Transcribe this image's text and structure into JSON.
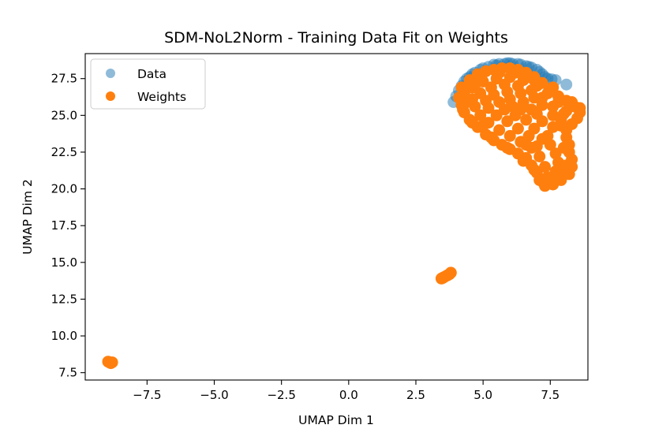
{
  "chart_data": {
    "type": "scatter",
    "title": "SDM-NoL2Norm - Training Data Fit on Weights",
    "xlabel": "UMAP Dim 1",
    "ylabel": "UMAP Dim 2",
    "xlim": [
      -9.8,
      8.9
    ],
    "ylim": [
      7.0,
      29.2
    ],
    "xticks": [
      -7.5,
      -5.0,
      -2.5,
      0.0,
      2.5,
      5.0,
      7.5
    ],
    "xtick_labels": [
      "−7.5",
      "−5.0",
      "−2.5",
      "0.0",
      "2.5",
      "5.0",
      "7.5"
    ],
    "yticks": [
      7.5,
      10.0,
      12.5,
      15.0,
      17.5,
      20.0,
      22.5,
      25.0,
      27.5
    ],
    "ytick_labels": [
      "7.5",
      "10.0",
      "12.5",
      "15.0",
      "17.5",
      "20.0",
      "22.5",
      "25.0",
      "27.5"
    ],
    "grid": false,
    "legend_position": "top-left",
    "series": [
      {
        "name": "Data",
        "color": "#1f77b4",
        "alpha": 0.5,
        "points": [
          [
            3.9,
            25.9
          ],
          [
            4.0,
            26.3
          ],
          [
            4.2,
            27.0
          ],
          [
            4.4,
            27.5
          ],
          [
            4.6,
            27.8
          ],
          [
            4.9,
            28.1
          ],
          [
            5.2,
            28.3
          ],
          [
            5.5,
            28.4
          ],
          [
            5.8,
            28.5
          ],
          [
            6.1,
            28.5
          ],
          [
            6.4,
            28.45
          ],
          [
            6.7,
            28.3
          ],
          [
            7.0,
            28.1
          ],
          [
            7.2,
            27.8
          ],
          [
            7.4,
            27.5
          ],
          [
            7.7,
            27.4
          ],
          [
            8.1,
            27.1
          ],
          [
            4.7,
            27.9
          ],
          [
            5.0,
            28.2
          ],
          [
            5.4,
            28.45
          ],
          [
            5.9,
            28.55
          ],
          [
            6.3,
            28.5
          ],
          [
            6.8,
            28.25
          ],
          [
            7.1,
            27.95
          ],
          [
            4.3,
            27.3
          ],
          [
            4.5,
            27.6
          ],
          [
            5.6,
            28.5
          ],
          [
            6.0,
            28.55
          ],
          [
            6.6,
            28.35
          ],
          [
            7.3,
            27.6
          ],
          [
            4.1,
            26.7
          ],
          [
            7.55,
            27.45
          ]
        ]
      },
      {
        "name": "Weights",
        "color": "#ff7f0e",
        "alpha": 1.0,
        "points": [
          [
            -8.9,
            8.2
          ],
          [
            -8.85,
            8.15
          ],
          [
            -8.95,
            8.25
          ],
          [
            -8.8,
            8.2
          ],
          [
            3.45,
            13.9
          ],
          [
            3.55,
            14.0
          ],
          [
            3.65,
            14.1
          ],
          [
            3.75,
            14.2
          ],
          [
            3.8,
            14.3
          ],
          [
            3.5,
            13.95
          ],
          [
            3.7,
            14.15
          ],
          [
            4.2,
            26.9
          ],
          [
            4.5,
            27.4
          ],
          [
            4.8,
            27.8
          ],
          [
            5.1,
            28.0
          ],
          [
            5.4,
            28.1
          ],
          [
            5.7,
            28.2
          ],
          [
            6.0,
            28.2
          ],
          [
            6.3,
            28.1
          ],
          [
            6.6,
            27.9
          ],
          [
            6.9,
            27.6
          ],
          [
            7.2,
            27.2
          ],
          [
            7.5,
            26.8
          ],
          [
            7.8,
            26.3
          ],
          [
            8.1,
            26.0
          ],
          [
            8.4,
            25.6
          ],
          [
            8.6,
            25.2
          ],
          [
            8.5,
            24.8
          ],
          [
            8.3,
            24.4
          ],
          [
            8.1,
            24.0
          ],
          [
            8.1,
            23.5
          ],
          [
            8.2,
            23.0
          ],
          [
            8.2,
            22.5
          ],
          [
            8.3,
            22.0
          ],
          [
            8.3,
            21.5
          ],
          [
            8.2,
            21.0
          ],
          [
            7.9,
            20.6
          ],
          [
            7.6,
            20.3
          ],
          [
            7.3,
            20.2
          ],
          [
            7.1,
            20.6
          ],
          [
            7.0,
            21.1
          ],
          [
            6.8,
            21.6
          ],
          [
            6.6,
            22.1
          ],
          [
            6.3,
            22.4
          ],
          [
            6.0,
            22.7
          ],
          [
            5.7,
            23.0
          ],
          [
            5.4,
            23.3
          ],
          [
            5.1,
            23.7
          ],
          [
            4.8,
            24.2
          ],
          [
            4.5,
            24.7
          ],
          [
            4.3,
            25.2
          ],
          [
            4.2,
            25.7
          ],
          [
            4.1,
            26.2
          ],
          [
            4.3,
            26.5
          ],
          [
            4.6,
            26.9
          ],
          [
            5.0,
            27.3
          ],
          [
            5.5,
            27.5
          ],
          [
            6.0,
            27.6
          ],
          [
            6.5,
            27.4
          ],
          [
            7.0,
            27.0
          ],
          [
            7.4,
            26.5
          ],
          [
            7.8,
            25.9
          ],
          [
            8.1,
            25.3
          ],
          [
            7.9,
            24.7
          ],
          [
            7.6,
            24.2
          ],
          [
            7.4,
            23.6
          ],
          [
            7.5,
            23.0
          ],
          [
            7.7,
            22.4
          ],
          [
            7.8,
            21.8
          ],
          [
            7.7,
            21.2
          ],
          [
            7.4,
            20.8
          ],
          [
            7.3,
            21.5
          ],
          [
            7.1,
            22.2
          ],
          [
            6.8,
            22.8
          ],
          [
            6.4,
            23.2
          ],
          [
            6.0,
            23.6
          ],
          [
            5.6,
            24.0
          ],
          [
            5.2,
            24.5
          ],
          [
            4.9,
            25.0
          ],
          [
            4.7,
            25.6
          ],
          [
            4.6,
            26.1
          ],
          [
            4.9,
            26.5
          ],
          [
            5.3,
            26.9
          ],
          [
            5.8,
            27.1
          ],
          [
            6.3,
            27.0
          ],
          [
            6.8,
            26.7
          ],
          [
            7.2,
            26.2
          ],
          [
            7.6,
            25.6
          ],
          [
            7.6,
            25.0
          ],
          [
            7.2,
            24.6
          ],
          [
            6.9,
            24.1
          ],
          [
            6.7,
            23.6
          ],
          [
            6.3,
            24.1
          ],
          [
            5.9,
            24.6
          ],
          [
            5.5,
            25.0
          ],
          [
            5.2,
            25.5
          ],
          [
            5.1,
            26.0
          ],
          [
            5.4,
            26.4
          ],
          [
            5.9,
            26.6
          ],
          [
            6.4,
            26.5
          ],
          [
            6.9,
            26.2
          ],
          [
            7.2,
            25.7
          ],
          [
            7.0,
            25.1
          ],
          [
            6.6,
            24.7
          ],
          [
            6.2,
            25.0
          ],
          [
            5.8,
            25.4
          ],
          [
            5.6,
            25.9
          ],
          [
            6.0,
            26.1
          ],
          [
            6.5,
            25.9
          ],
          [
            6.8,
            25.4
          ],
          [
            6.4,
            25.4
          ],
          [
            6.1,
            25.6
          ],
          [
            7.2,
            23.4
          ],
          [
            7.0,
            22.9
          ],
          [
            6.6,
            23.0
          ],
          [
            5.0,
            24.3
          ],
          [
            4.4,
            25.9
          ],
          [
            4.7,
            27.1
          ],
          [
            5.6,
            27.9
          ],
          [
            6.2,
            27.9
          ],
          [
            6.9,
            27.4
          ],
          [
            7.6,
            26.9
          ],
          [
            8.3,
            25.9
          ],
          [
            8.6,
            25.5
          ],
          [
            8.0,
            25.1
          ],
          [
            7.9,
            24.3
          ],
          [
            8.0,
            22.8
          ],
          [
            8.1,
            21.6
          ],
          [
            7.9,
            21.2
          ],
          [
            7.6,
            20.6
          ],
          [
            7.2,
            20.5
          ],
          [
            6.9,
            21.3
          ],
          [
            6.5,
            21.9
          ],
          [
            5.9,
            22.8
          ],
          [
            5.3,
            23.5
          ],
          [
            4.6,
            24.5
          ],
          [
            4.25,
            25.4
          ]
        ]
      }
    ]
  }
}
